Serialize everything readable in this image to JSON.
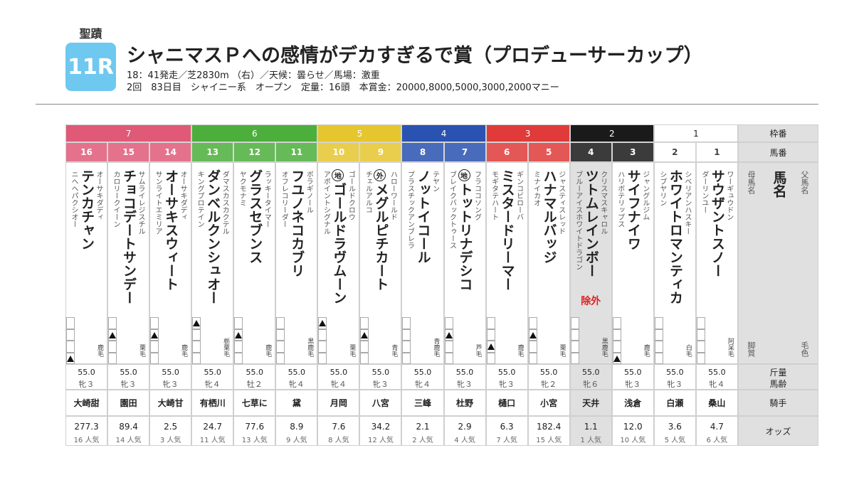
{
  "header": {
    "venue": "聖蹟",
    "race": "11R",
    "title": "シャニマスＰへの感情がデカすぎるで賞（プロデューサーカップ）",
    "info1": "18：41発走／芝2830m （右）／天候：曇らせ／馬場：激重",
    "info2": "2回　83日目　シャイニー系　オープン　定量：16頭　本賞金：20000,8000,5000,3000,2000マニー"
  },
  "row_labels": {
    "frame": "枠番",
    "number": "馬番",
    "sire": "父馬名",
    "dam": "母馬名",
    "name": "馬名",
    "style": "脚質",
    "coat": "毛色",
    "weight": "斤量",
    "age": "馬齢",
    "jockey": "騎手",
    "odds": "オッズ"
  },
  "frames": [
    {
      "number": "7",
      "color": "#e05a78",
      "text_color": "#ffffff",
      "size": 3
    },
    {
      "number": "6",
      "color": "#4caf3c",
      "text_color": "#ffffff",
      "size": 3
    },
    {
      "number": "5",
      "color": "#e6c62e",
      "text_color": "#ffffff",
      "size": 2
    },
    {
      "number": "4",
      "color": "#2a52b0",
      "text_color": "#ffffff",
      "size": 2
    },
    {
      "number": "3",
      "color": "#e03a3a",
      "text_color": "#ffffff",
      "size": 2
    },
    {
      "number": "2",
      "color": "#1a1a1a",
      "text_color": "#ffffff",
      "size": 2
    },
    {
      "number": "1",
      "color": "#ffffff",
      "text_color": "#222222",
      "size": 2
    }
  ],
  "horses": [
    {
      "number": "16",
      "sire": "オーサキダディ",
      "name": "テンカチャン",
      "dam": "ニヘヘパクシオー",
      "coat": "鹿毛",
      "weight": "55.0",
      "age": "牝３",
      "jockey": "大崎甜",
      "odds": "277.3",
      "popularity": "16 人気",
      "style": 4
    },
    {
      "number": "15",
      "sire": "サムライレジスチル",
      "name": "チョコデートサンデー",
      "dam": "カロリークイーン",
      "coat": "栗毛",
      "weight": "55.0",
      "age": "牝３",
      "jockey": "園田",
      "odds": "89.4",
      "popularity": "14 人気",
      "style": 2
    },
    {
      "number": "14",
      "sire": "オーサキダディ",
      "name": "オーサキスウィート",
      "dam": "サンライトエミリア",
      "coat": "鹿毛",
      "weight": "55.0",
      "age": "牝３",
      "jockey": "大崎甘",
      "odds": "2.5",
      "popularity": "3 人気",
      "style": 2
    },
    {
      "number": "13",
      "sire": "ダマスカスカクテル",
      "name": "ダンベルクンシュオー",
      "dam": "キングプロテイン",
      "coat": "栃栗毛",
      "weight": "55.0",
      "age": "牝４",
      "jockey": "有栖川",
      "odds": "24.7",
      "popularity": "11 人気",
      "style": 1
    },
    {
      "number": "12",
      "sire": "ラッキータイマー",
      "name": "グラスセブンス",
      "dam": "ヤクモナミ",
      "coat": "鹿毛",
      "weight": "55.0",
      "age": "牡２",
      "jockey": "七草に",
      "odds": "77.6",
      "popularity": "13 人気",
      "style": 2
    },
    {
      "number": "11",
      "sire": "ボラギノール",
      "name": "フユノネコカブリ",
      "dam": "オフレコリーダー",
      "coat": "黒鹿毛",
      "weight": "55.0",
      "age": "牝４",
      "jockey": "黛",
      "odds": "8.9",
      "popularity": "9 人気",
      "style": null
    },
    {
      "number": "10",
      "mark": "地",
      "sire": "ゴールドクロウ",
      "name": "ゴールドラヴムーン",
      "dam": "アポイントシグナル",
      "coat": "栗毛",
      "weight": "55.0",
      "age": "牝４",
      "jockey": "月岡",
      "odds": "7.6",
      "popularity": "8 人気",
      "style": 1
    },
    {
      "number": "9",
      "mark": "外",
      "sire": "ハローワールド",
      "name": "メグルピチカート",
      "dam": "チェルアルコ",
      "coat": "青毛",
      "weight": "55.0",
      "age": "牝３",
      "jockey": "八宮",
      "odds": "34.2",
      "popularity": "12 人気",
      "style": 2
    },
    {
      "number": "8",
      "sire": "テヤン",
      "name": "ノットイコール",
      "dam": "プラスチックアンブレラ",
      "coat": "青鹿毛",
      "weight": "55.0",
      "age": "牝４",
      "jockey": "三峰",
      "odds": "2.1",
      "popularity": "2 人気",
      "style": null
    },
    {
      "number": "7",
      "mark": "地",
      "sire": "フラココソング",
      "name": "トットリナデシコ",
      "dam": "ブレイクバックトゥース",
      "coat": "芦毛",
      "weight": "55.0",
      "age": "牝３",
      "jockey": "杜野",
      "odds": "2.9",
      "popularity": "4 人気",
      "style": 2
    },
    {
      "number": "6",
      "sire": "ギンコビローバ",
      "name": "ミスタードリーマー",
      "dam": "モギタテハート",
      "coat": "鹿毛",
      "weight": "55.0",
      "age": "牝３",
      "jockey": "樋口",
      "odds": "6.3",
      "popularity": "7 人気",
      "style": 3
    },
    {
      "number": "5",
      "sire": "ジャスティスレッド",
      "name": "ハナマルバッジ",
      "dam": "ミナイカオ",
      "coat": "栗毛",
      "weight": "55.0",
      "age": "牝２",
      "jockey": "小宮",
      "odds": "182.4",
      "popularity": "15 人気",
      "style": 2
    },
    {
      "number": "4",
      "sire": "クリスマスキャロル",
      "name": "ツトムレインボー",
      "dam": "ブルーアイスホワイトドラゴン",
      "coat": "黒鹿毛",
      "weight": "55.0",
      "age": "牝６",
      "jockey": "天井",
      "odds": "1.1",
      "popularity": "1 人気",
      "style": null,
      "status": "除外"
    },
    {
      "number": "3",
      "sire": "ジャングルジム",
      "name": "サイフナイワ",
      "dam": "ハリボテリップス",
      "coat": "鹿毛",
      "weight": "55.0",
      "age": "牝３",
      "jockey": "浅倉",
      "odds": "12.0",
      "popularity": "10 人気",
      "style": 4
    },
    {
      "number": "2",
      "sire": "シベリアンハスキー",
      "name": "ホワイトロマンティカ",
      "dam": "シブヤリン",
      "coat": "白毛",
      "weight": "55.0",
      "age": "牝３",
      "jockey": "白瀬",
      "odds": "3.6",
      "popularity": "5 人気",
      "style": null
    },
    {
      "number": "1",
      "sire": "ワーギュウドン",
      "name": "サウザントスノー",
      "dam": "ダーリンユー",
      "coat": "阿呆毛",
      "weight": "55.0",
      "age": "牝４",
      "jockey": "桑山",
      "odds": "4.7",
      "popularity": "6 人気",
      "style": null
    }
  ]
}
